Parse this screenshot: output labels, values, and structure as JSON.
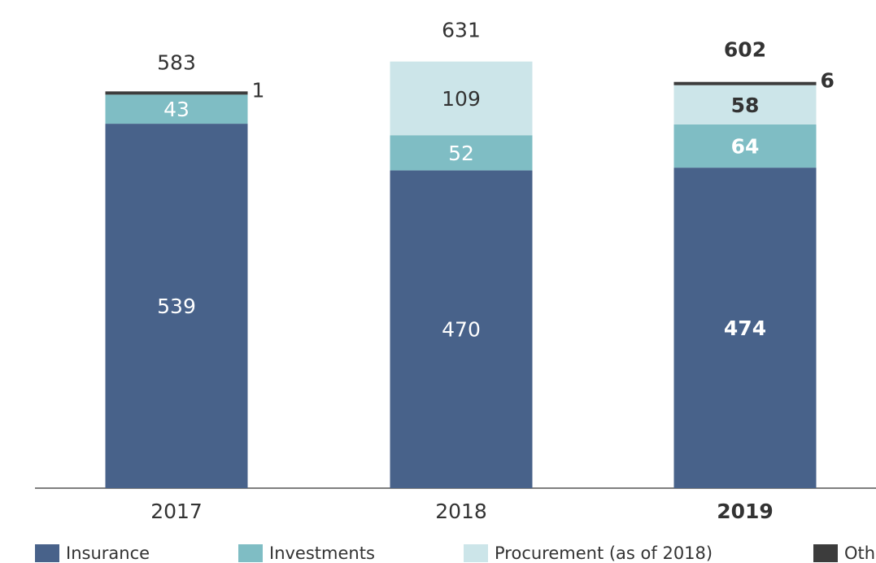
{
  "chart_data": {
    "type": "stacked_bar",
    "categories": [
      "2017",
      "2018",
      "2019"
    ],
    "series": [
      {
        "name": "Insurance",
        "color": "#48628a",
        "values": [
          539,
          470,
          474
        ]
      },
      {
        "name": "Investments",
        "color": "#7fbdc4",
        "values": [
          43,
          52,
          64
        ]
      },
      {
        "name": "Procurement (as of 2018)",
        "color": "#cce5e9",
        "values": [
          null,
          109,
          58
        ]
      },
      {
        "name": "Other",
        "color": "#3c3c3c",
        "values": [
          1,
          null,
          6
        ]
      }
    ],
    "totals": [
      583,
      631,
      602
    ],
    "ylim": [
      0,
      722
    ]
  }
}
